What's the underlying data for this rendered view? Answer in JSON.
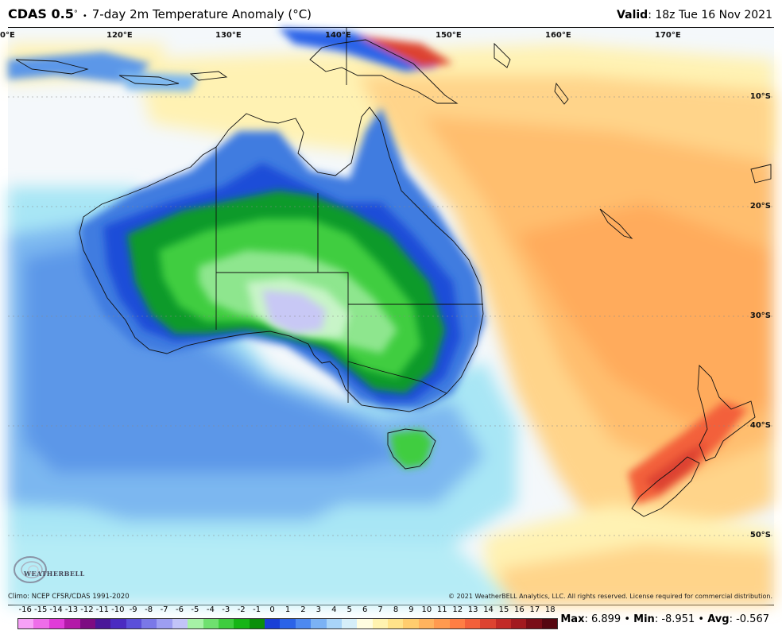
{
  "header": {
    "model": "CDAS 0.5",
    "product": "7-day 2m Temperature Anomaly (",
    "unit_deg": "C",
    "valid_label": "Valid",
    "valid_value": ": 18z Tue 16 Nov 2021"
  },
  "map": {
    "longitudes": [
      "0°E",
      "120°E",
      "130°E",
      "140°E",
      "150°E",
      "160°E",
      "170°E"
    ],
    "latitudes": [
      "10°S",
      "20°S",
      "30°S",
      "40°S",
      "50°S"
    ],
    "ocean_color": "#f4f8fb",
    "regions": [
      "Australia",
      "Tasmania",
      "New Zealand",
      "New Guinea",
      "Indonesia"
    ]
  },
  "footer": {
    "climo": "Climo: NCEP CFSR/CDAS 1991-2020",
    "copyright": "© 2021 WeatherBELL Analytics, LLC. All rights reserved. License required for commercial distribution.",
    "logo_text": "WEATHERBELL"
  },
  "colorbar": {
    "labels": [
      "-16",
      "-15",
      "-14",
      "-13",
      "-12",
      "-11",
      "-10",
      "-9",
      "-8",
      "-7",
      "-6",
      "-5",
      "-4",
      "-3",
      "-2",
      "-1",
      "0",
      "1",
      "2",
      "3",
      "4",
      "5",
      "6",
      "7",
      "8",
      "9",
      "10",
      "11",
      "12",
      "13",
      "14",
      "15",
      "16",
      "17",
      "18"
    ],
    "colors": [
      "#f7a1f7",
      "#ee6de9",
      "#e03bd8",
      "#b31aa8",
      "#7d0c82",
      "#4a1799",
      "#4b2bc1",
      "#5b4fd9",
      "#7a78e8",
      "#9d9ef2",
      "#c2c4f8",
      "#a6f2a6",
      "#6fe06f",
      "#3fcd3f",
      "#16b516",
      "#0b8f0b",
      "#1a3fd6",
      "#2a63e8",
      "#4d89f0",
      "#7bb2f5",
      "#a9d4f8",
      "#d5eef9",
      "#fffde0",
      "#fff3b0",
      "#ffe38a",
      "#ffcd6e",
      "#ffb35e",
      "#ff9a4f",
      "#ff7e44",
      "#f3603a",
      "#dd4330",
      "#c22a26",
      "#a21a1f",
      "#7a0d17",
      "#550610"
    ]
  },
  "stats": {
    "max_label": "Max",
    "max_value": ": 6.899",
    "min_label": "Min",
    "min_value": ": -8.951",
    "avg_label": "Avg",
    "avg_value": ": -0.567"
  }
}
